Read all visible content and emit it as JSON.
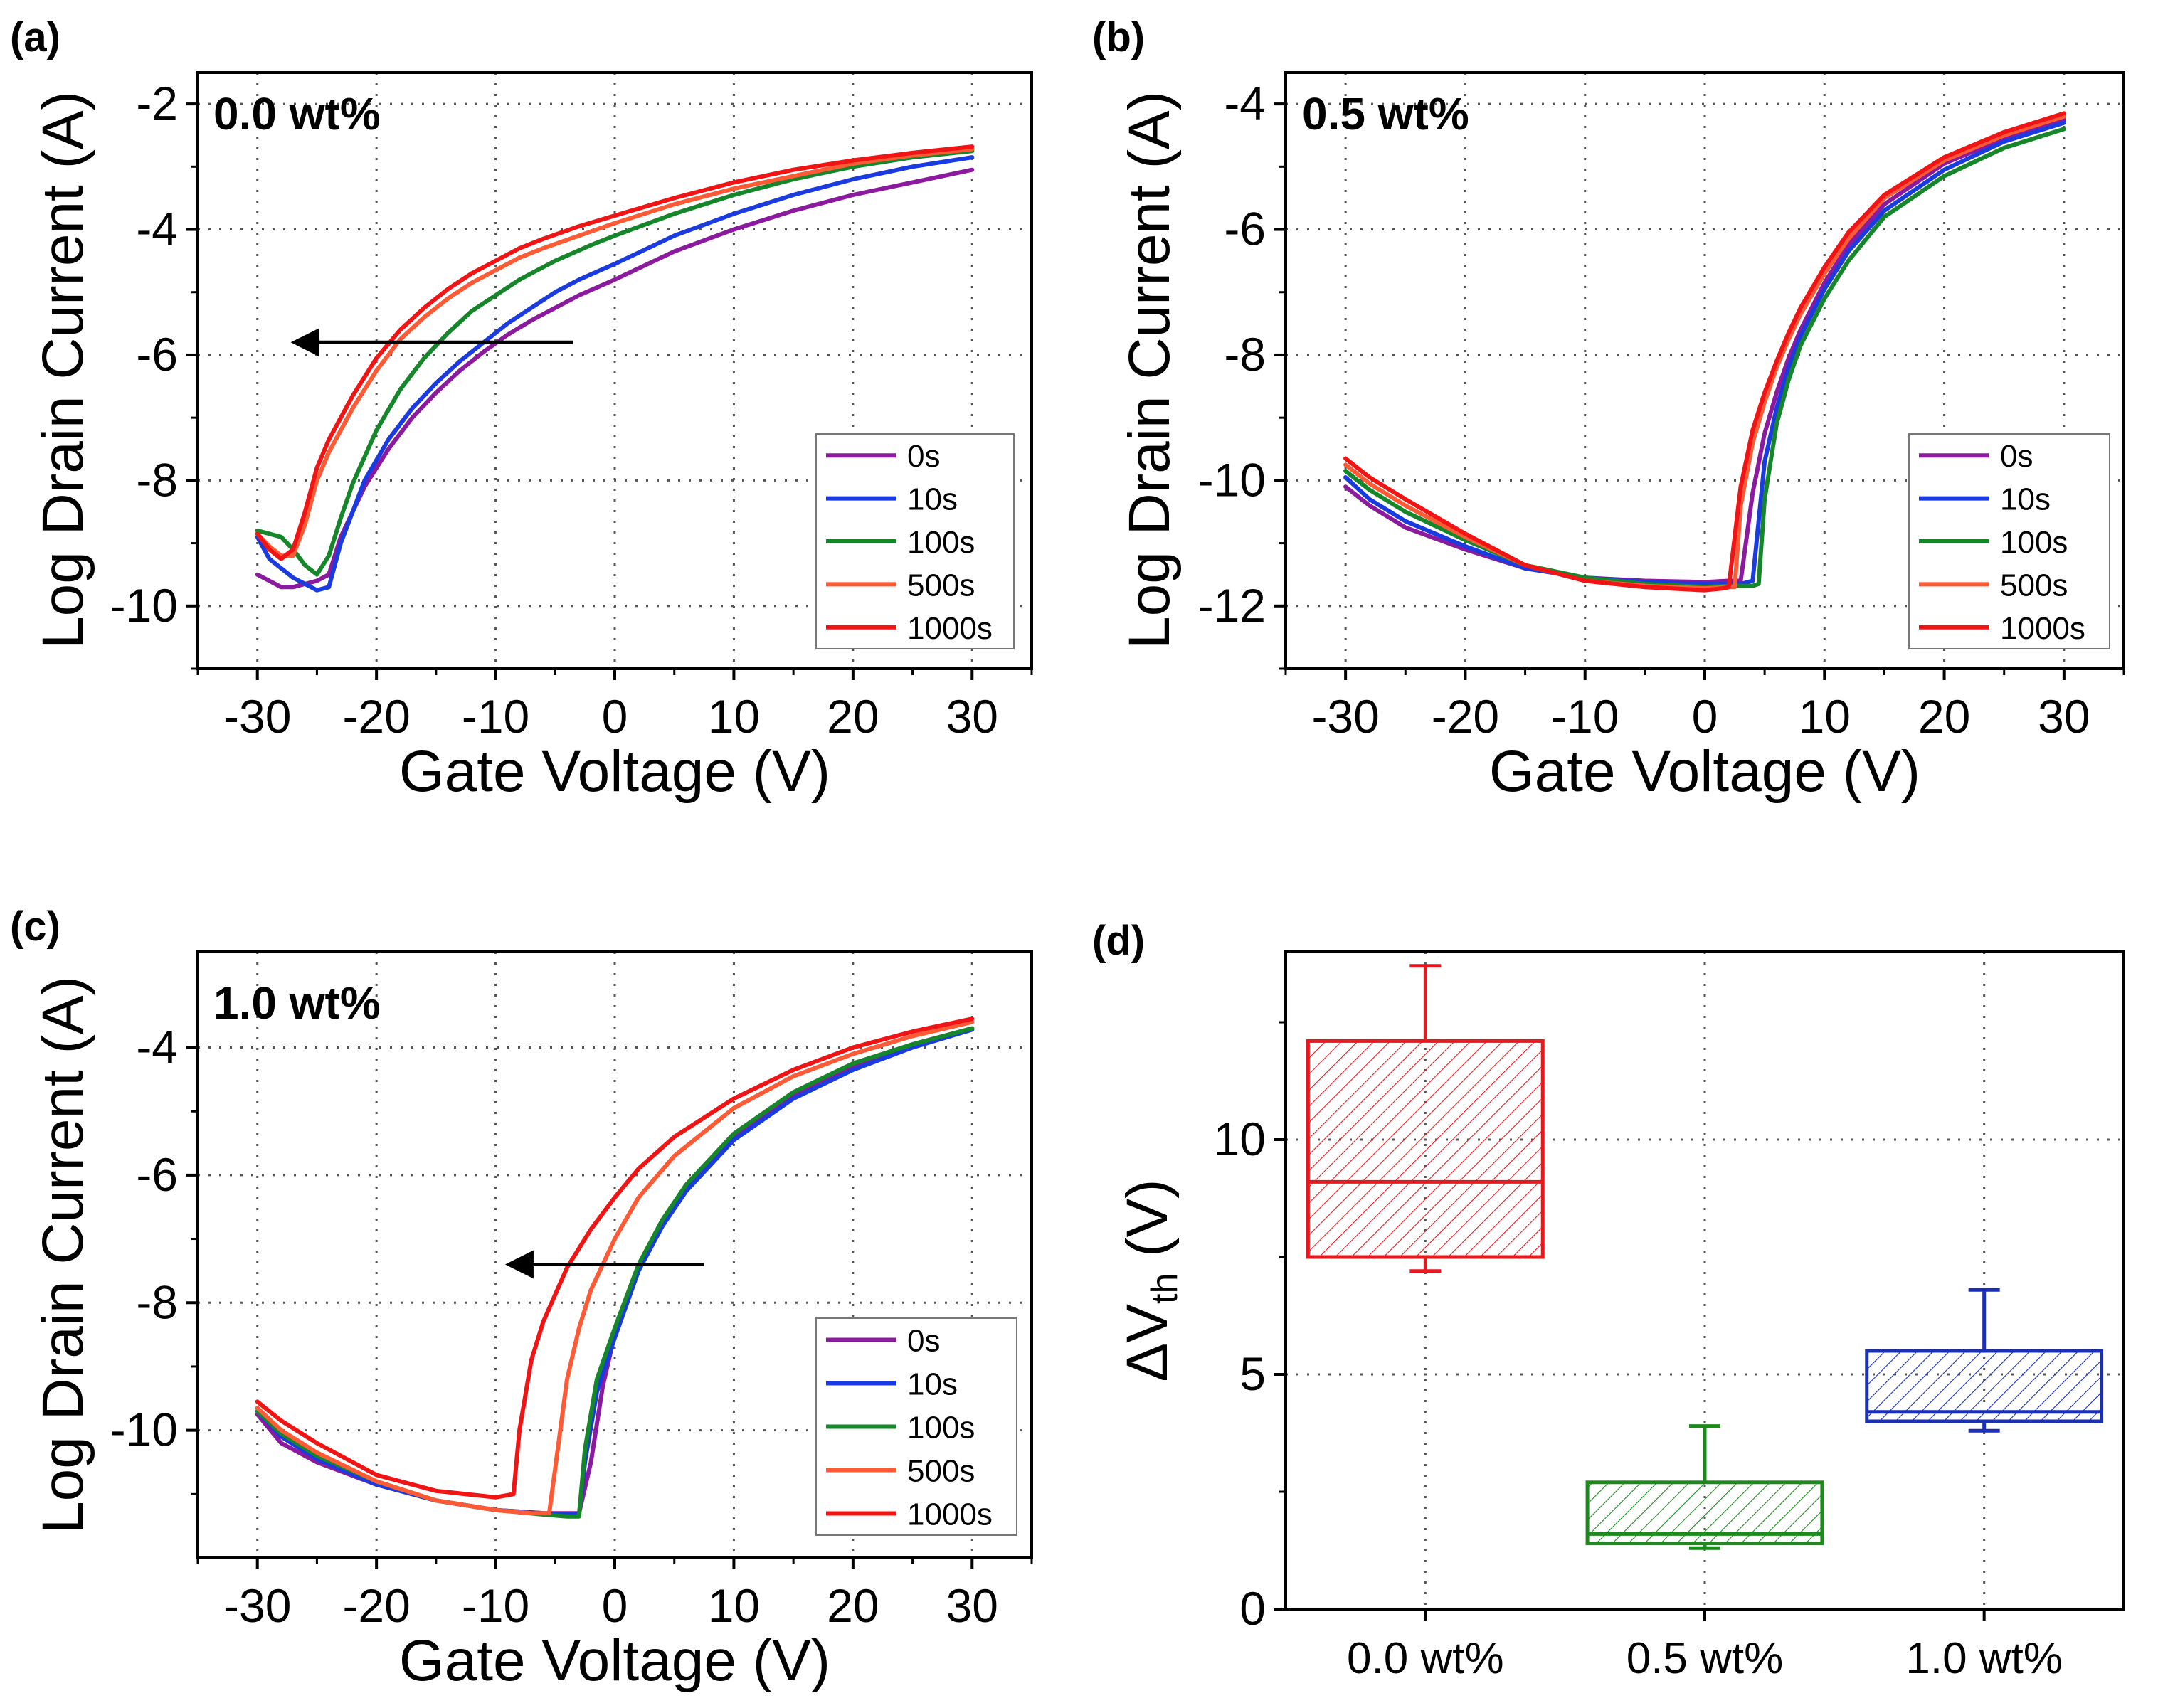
{
  "figure": {
    "panels_order": [
      "a",
      "b",
      "c",
      "d"
    ]
  },
  "chart_data": [
    {
      "id": "a",
      "panel_label": "(a)",
      "type": "line",
      "annotation": "0.0 wt%",
      "xlabel": "Gate Voltage (V)",
      "ylabel": "Log Drain Current (A)",
      "xlim": [
        -35,
        35
      ],
      "ylim": [
        -11,
        -1.5
      ],
      "xticks": [
        -30,
        -20,
        -10,
        0,
        10,
        20,
        30
      ],
      "yticks": [
        -10,
        -8,
        -6,
        -4,
        -2
      ],
      "grid": true,
      "legend_position": "bottom-right",
      "arrow": {
        "from": [
          -3.5,
          -5.8
        ],
        "to": [
          -27.5,
          -5.8
        ]
      },
      "series": [
        {
          "name": "0s",
          "color": "#8b1a9e",
          "x": [
            -30,
            -29,
            -28,
            -27,
            -26,
            -25,
            -24,
            -23,
            -21,
            -19,
            -17,
            -15,
            -13,
            -11,
            -9,
            -7,
            -5,
            -3,
            0,
            5,
            10,
            15,
            20,
            25,
            30
          ],
          "y": [
            -9.5,
            -9.6,
            -9.7,
            -9.7,
            -9.65,
            -9.6,
            -9.5,
            -8.9,
            -8.1,
            -7.5,
            -7.0,
            -6.6,
            -6.25,
            -5.95,
            -5.68,
            -5.45,
            -5.25,
            -5.05,
            -4.8,
            -4.35,
            -4.0,
            -3.7,
            -3.45,
            -3.25,
            -3.05
          ]
        },
        {
          "name": "10s",
          "color": "#1a3be0",
          "x": [
            -30,
            -29,
            -28,
            -27,
            -26,
            -25,
            -24,
            -23,
            -21,
            -19,
            -17,
            -15,
            -13,
            -11,
            -9,
            -7,
            -5,
            -3,
            0,
            5,
            10,
            15,
            20,
            25,
            30
          ],
          "y": [
            -8.9,
            -9.25,
            -9.4,
            -9.55,
            -9.65,
            -9.75,
            -9.7,
            -9.0,
            -8.0,
            -7.35,
            -6.85,
            -6.45,
            -6.1,
            -5.8,
            -5.5,
            -5.25,
            -5.0,
            -4.8,
            -4.55,
            -4.1,
            -3.75,
            -3.45,
            -3.2,
            -3.0,
            -2.85
          ]
        },
        {
          "name": "100s",
          "color": "#15862a",
          "x": [
            -30,
            -29,
            -28,
            -27,
            -26,
            -25,
            -24,
            -23,
            -22,
            -20,
            -18,
            -16,
            -14,
            -12,
            -10,
            -8,
            -5,
            -2,
            0,
            5,
            10,
            15,
            20,
            25,
            30
          ],
          "y": [
            -8.8,
            -8.85,
            -8.9,
            -9.1,
            -9.35,
            -9.5,
            -9.2,
            -8.6,
            -8.05,
            -7.2,
            -6.55,
            -6.05,
            -5.65,
            -5.3,
            -5.05,
            -4.8,
            -4.5,
            -4.25,
            -4.1,
            -3.75,
            -3.45,
            -3.2,
            -3.0,
            -2.85,
            -2.75
          ]
        },
        {
          "name": "500s",
          "color": "#ff5a36",
          "x": [
            -30,
            -29,
            -28,
            -27,
            -26,
            -25,
            -24,
            -22,
            -20,
            -18,
            -16,
            -14,
            -12,
            -10,
            -8,
            -6,
            -3,
            0,
            5,
            10,
            15,
            20,
            25,
            30
          ],
          "y": [
            -8.85,
            -9.05,
            -9.2,
            -9.2,
            -8.7,
            -8.0,
            -7.55,
            -6.85,
            -6.25,
            -5.75,
            -5.4,
            -5.1,
            -4.85,
            -4.65,
            -4.45,
            -4.3,
            -4.1,
            -3.9,
            -3.6,
            -3.35,
            -3.15,
            -2.95,
            -2.82,
            -2.72
          ]
        },
        {
          "name": "1000s",
          "color": "#f01414",
          "x": [
            -30,
            -29,
            -28,
            -27,
            -26,
            -25,
            -24,
            -22,
            -20,
            -18,
            -16,
            -14,
            -12,
            -10,
            -8,
            -6,
            -3,
            0,
            5,
            10,
            15,
            20,
            25,
            30
          ],
          "y": [
            -8.85,
            -9.1,
            -9.25,
            -9.1,
            -8.5,
            -7.8,
            -7.35,
            -6.65,
            -6.05,
            -5.6,
            -5.25,
            -4.95,
            -4.7,
            -4.5,
            -4.3,
            -4.15,
            -3.95,
            -3.78,
            -3.5,
            -3.25,
            -3.05,
            -2.9,
            -2.78,
            -2.68
          ]
        }
      ]
    },
    {
      "id": "b",
      "panel_label": "(b)",
      "type": "line",
      "annotation": "0.5 wt%",
      "xlabel": "Gate Voltage (V)",
      "ylabel": "Log Drain Current (A)",
      "xlim": [
        -35,
        35
      ],
      "ylim": [
        -13,
        -3.5
      ],
      "xticks": [
        -30,
        -20,
        -10,
        0,
        10,
        20,
        30
      ],
      "yticks": [
        -12,
        -10,
        -8,
        -6,
        -4
      ],
      "grid": true,
      "legend_position": "bottom-right",
      "series": [
        {
          "name": "0s",
          "color": "#8b1a9e",
          "x": [
            -30,
            -28,
            -25,
            -20,
            -15,
            -10,
            -5,
            0,
            2,
            3,
            4,
            5,
            6,
            7,
            8,
            10,
            12,
            15,
            20,
            25,
            30
          ],
          "y": [
            -10.1,
            -10.4,
            -10.75,
            -11.1,
            -11.4,
            -11.55,
            -11.6,
            -11.62,
            -11.6,
            -11.6,
            -10.2,
            -9.25,
            -8.6,
            -8.05,
            -7.6,
            -6.85,
            -6.25,
            -5.6,
            -4.95,
            -4.55,
            -4.25
          ]
        },
        {
          "name": "10s",
          "color": "#1a3be0",
          "x": [
            -30,
            -28,
            -25,
            -20,
            -15,
            -10,
            -5,
            0,
            2,
            3,
            4,
            5,
            6,
            7,
            8,
            10,
            12,
            15,
            20,
            25,
            30
          ],
          "y": [
            -9.95,
            -10.3,
            -10.65,
            -11.05,
            -11.4,
            -11.55,
            -11.62,
            -11.65,
            -11.65,
            -11.65,
            -11.6,
            -9.7,
            -8.85,
            -8.2,
            -7.7,
            -6.95,
            -6.35,
            -5.7,
            -5.05,
            -4.6,
            -4.3
          ]
        },
        {
          "name": "100s",
          "color": "#15862a",
          "x": [
            -30,
            -28,
            -25,
            -20,
            -15,
            -10,
            -5,
            0,
            2,
            3,
            4,
            4.5,
            5,
            6,
            7,
            8,
            10,
            12,
            15,
            20,
            25,
            30
          ],
          "y": [
            -9.85,
            -10.15,
            -10.5,
            -10.95,
            -11.35,
            -11.55,
            -11.65,
            -11.7,
            -11.68,
            -11.68,
            -11.68,
            -11.65,
            -10.3,
            -9.1,
            -8.4,
            -7.85,
            -7.1,
            -6.5,
            -5.8,
            -5.15,
            -4.7,
            -4.4
          ]
        },
        {
          "name": "500s",
          "color": "#ff5a36",
          "x": [
            -30,
            -28,
            -25,
            -20,
            -15,
            -10,
            -5,
            0,
            2,
            2.5,
            3,
            4,
            5,
            6,
            7,
            8,
            10,
            12,
            15,
            20,
            25,
            30
          ],
          "y": [
            -9.75,
            -10.05,
            -10.4,
            -10.9,
            -11.35,
            -11.6,
            -11.68,
            -11.72,
            -11.7,
            -11.7,
            -10.4,
            -9.4,
            -8.75,
            -8.2,
            -7.75,
            -7.35,
            -6.7,
            -6.15,
            -5.5,
            -4.9,
            -4.5,
            -4.2
          ]
        },
        {
          "name": "1000s",
          "color": "#f01414",
          "x": [
            -30,
            -28,
            -25,
            -20,
            -15,
            -10,
            -5,
            0,
            1.5,
            2,
            3,
            4,
            5,
            6,
            7,
            8,
            10,
            12,
            15,
            20,
            25,
            30
          ],
          "y": [
            -9.65,
            -9.95,
            -10.3,
            -10.85,
            -11.35,
            -11.6,
            -11.7,
            -11.75,
            -11.72,
            -11.7,
            -10.1,
            -9.2,
            -8.6,
            -8.1,
            -7.65,
            -7.25,
            -6.6,
            -6.05,
            -5.45,
            -4.85,
            -4.45,
            -4.15
          ]
        }
      ]
    },
    {
      "id": "c",
      "panel_label": "(c)",
      "type": "line",
      "annotation": "1.0 wt%",
      "xlabel": "Gate Voltage (V)",
      "ylabel": "Log Drain Current (A)",
      "xlim": [
        -35,
        35
      ],
      "ylim": [
        -12,
        -2.5
      ],
      "xticks": [
        -30,
        -20,
        -10,
        0,
        10,
        20,
        30
      ],
      "yticks": [
        -10,
        -8,
        -6,
        -4
      ],
      "grid": true,
      "legend_position": "bottom-right",
      "arrow": {
        "from": [
          7.5,
          -7.4
        ],
        "to": [
          -9.5,
          -7.4
        ]
      },
      "series": [
        {
          "name": "0s",
          "color": "#8b1a9e",
          "x": [
            -30,
            -28,
            -25,
            -20,
            -15,
            -10,
            -6,
            -4,
            -3,
            -2,
            -1,
            0,
            2,
            4,
            6,
            10,
            15,
            20,
            25,
            30
          ],
          "y": [
            -9.75,
            -10.2,
            -10.5,
            -10.85,
            -11.1,
            -11.25,
            -11.3,
            -11.3,
            -11.3,
            -10.5,
            -9.3,
            -8.5,
            -7.45,
            -6.75,
            -6.2,
            -5.4,
            -4.75,
            -4.3,
            -3.95,
            -3.7
          ]
        },
        {
          "name": "10s",
          "color": "#1a3be0",
          "x": [
            -30,
            -28,
            -25,
            -20,
            -15,
            -10,
            -6,
            -4,
            -3,
            -2.5,
            -1.5,
            0,
            2,
            4,
            6,
            10,
            15,
            20,
            25,
            30
          ],
          "y": [
            -9.7,
            -10.1,
            -10.45,
            -10.85,
            -11.1,
            -11.25,
            -11.3,
            -11.32,
            -11.32,
            -10.5,
            -9.4,
            -8.55,
            -7.5,
            -6.8,
            -6.25,
            -5.45,
            -4.8,
            -4.35,
            -4.0,
            -3.72
          ]
        },
        {
          "name": "100s",
          "color": "#15862a",
          "x": [
            -30,
            -28,
            -25,
            -20,
            -15,
            -10,
            -6,
            -4,
            -3,
            -2.5,
            -1.5,
            0,
            2,
            4,
            6,
            10,
            15,
            20,
            25,
            30
          ],
          "y": [
            -9.7,
            -10.05,
            -10.4,
            -10.8,
            -11.1,
            -11.25,
            -11.32,
            -11.35,
            -11.35,
            -10.3,
            -9.2,
            -8.4,
            -7.4,
            -6.7,
            -6.15,
            -5.35,
            -4.7,
            -4.25,
            -3.95,
            -3.7
          ]
        },
        {
          "name": "500s",
          "color": "#ff5a36",
          "x": [
            -30,
            -28,
            -25,
            -20,
            -15,
            -10,
            -7,
            -5.5,
            -5,
            -4,
            -3,
            -2,
            0,
            2,
            5,
            10,
            15,
            20,
            25,
            30
          ],
          "y": [
            -9.65,
            -10.0,
            -10.35,
            -10.8,
            -11.1,
            -11.25,
            -11.3,
            -11.3,
            -10.6,
            -9.2,
            -8.4,
            -7.8,
            -7.0,
            -6.35,
            -5.7,
            -4.95,
            -4.45,
            -4.1,
            -3.82,
            -3.6
          ]
        },
        {
          "name": "1000s",
          "color": "#f01414",
          "x": [
            -30,
            -28,
            -25,
            -20,
            -15,
            -10,
            -8.5,
            -8,
            -7,
            -6,
            -4,
            -2,
            0,
            2,
            5,
            10,
            15,
            20,
            25,
            30
          ],
          "y": [
            -9.55,
            -9.85,
            -10.2,
            -10.7,
            -10.95,
            -11.05,
            -11.0,
            -10.0,
            -8.9,
            -8.3,
            -7.45,
            -6.85,
            -6.35,
            -5.9,
            -5.4,
            -4.8,
            -4.35,
            -4.0,
            -3.75,
            -3.55
          ]
        }
      ]
    },
    {
      "id": "d",
      "panel_label": "(d)",
      "type": "box",
      "xlabel": "",
      "ylabel": "ΔV",
      "ylabel_sub": "th",
      "ylabel_unit": " (V)",
      "ylim": [
        0,
        14
      ],
      "yticks": [
        0,
        5,
        10
      ],
      "grid": true,
      "categories": [
        "0.0 wt%",
        "0.5 wt%",
        "1.0 wt%"
      ],
      "boxes": [
        {
          "category": "0.0 wt%",
          "color": "#e8191e",
          "whisker_low": 7.2,
          "q1": 7.5,
          "median": 9.1,
          "q3": 12.1,
          "whisker_high": 13.7
        },
        {
          "category": "0.5 wt%",
          "color": "#1e8a1e",
          "whisker_low": 1.3,
          "q1": 1.4,
          "median": 1.6,
          "q3": 2.7,
          "whisker_high": 3.9
        },
        {
          "category": "1.0 wt%",
          "color": "#1a2fb5",
          "whisker_low": 3.8,
          "q1": 4.0,
          "median": 4.2,
          "q3": 5.5,
          "whisker_high": 6.8
        }
      ]
    }
  ]
}
